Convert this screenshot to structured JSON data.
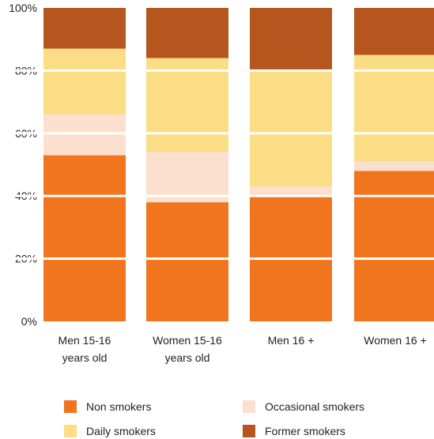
{
  "chart_data": {
    "type": "bar",
    "stacked": true,
    "categories": [
      [
        "Men 15-16",
        "years old"
      ],
      [
        "Women 15-16",
        "years old"
      ],
      [
        "Men 16 +"
      ],
      [
        "Women 16 +"
      ]
    ],
    "series": [
      {
        "name": "Non smokers",
        "color": "#F1751E",
        "values": [
          53,
          38,
          40,
          48
        ]
      },
      {
        "name": "Occasional smokers",
        "color": "#FBE0D0",
        "values": [
          13,
          16,
          3,
          3
        ]
      },
      {
        "name": "Daily smokers",
        "color": "#FBDD86",
        "values": [
          21,
          30,
          37,
          34
        ]
      },
      {
        "name": "Former smokers",
        "color": "#B4561E",
        "values": [
          13,
          16,
          20,
          15
        ]
      }
    ],
    "yticks": [
      "0%",
      "20%",
      "40%",
      "60%",
      "80%",
      "100%"
    ],
    "ylim": [
      0,
      100
    ],
    "grid": "horizontal white lines at 20% intervals",
    "legend_position": "bottom"
  }
}
